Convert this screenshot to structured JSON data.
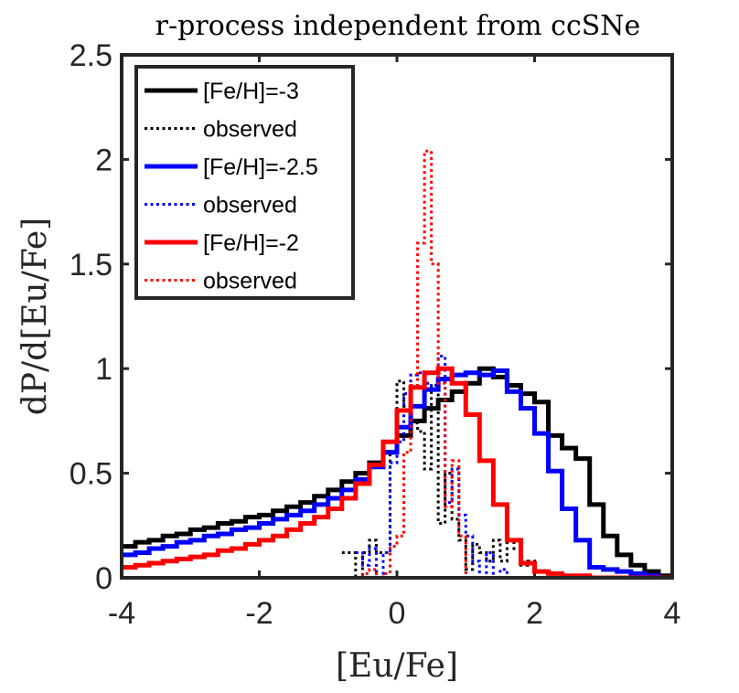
{
  "chart_data": {
    "type": "line",
    "title": "r-process independent from ccSNe",
    "xlabel": "[Eu/Fe]",
    "ylabel": "dP/d[Eu/Fe]",
    "xlim": [
      -4,
      4
    ],
    "ylim": [
      0,
      2.5
    ],
    "xticks": [
      -4,
      -2,
      0,
      2,
      4
    ],
    "yticks": [
      0,
      0.5,
      1,
      1.5,
      2,
      2.5
    ],
    "xtick_labels": [
      "-4",
      "-2",
      "0",
      "2",
      "4"
    ],
    "ytick_labels": [
      "0",
      "0.5",
      "1",
      "1.5",
      "2",
      "2.5"
    ],
    "grid": false,
    "legend_position": "top-left",
    "series": [
      {
        "name": "[Fe/H]=-3",
        "color": "#000000",
        "style": "solid",
        "x": [
          -4.0,
          -3.8,
          -3.6,
          -3.4,
          -3.2,
          -3.0,
          -2.8,
          -2.6,
          -2.4,
          -2.2,
          -2.0,
          -1.8,
          -1.6,
          -1.4,
          -1.2,
          -1.0,
          -0.8,
          -0.6,
          -0.4,
          -0.2,
          0.0,
          0.2,
          0.4,
          0.6,
          0.8,
          1.0,
          1.2,
          1.4,
          1.6,
          1.8,
          2.0,
          2.2,
          2.4,
          2.6,
          2.8,
          3.0,
          3.2,
          3.4,
          3.6,
          3.8
        ],
        "y": [
          0.15,
          0.17,
          0.18,
          0.2,
          0.21,
          0.23,
          0.24,
          0.26,
          0.27,
          0.29,
          0.3,
          0.32,
          0.34,
          0.36,
          0.39,
          0.42,
          0.46,
          0.5,
          0.55,
          0.6,
          0.68,
          0.75,
          0.81,
          0.85,
          0.89,
          0.93,
          1.0,
          0.96,
          0.92,
          0.88,
          0.84,
          0.68,
          0.62,
          0.57,
          0.35,
          0.2,
          0.11,
          0.06,
          0.03,
          0.01
        ]
      },
      {
        "name": "observed",
        "color": "#000000",
        "style": "dotted",
        "x": [
          -0.8,
          -0.7,
          -0.6,
          -0.5,
          -0.4,
          -0.3,
          -0.2,
          -0.1,
          0.0,
          0.1,
          0.2,
          0.3,
          0.4,
          0.5,
          0.6,
          0.7,
          0.8,
          0.9,
          1.0,
          1.1,
          1.2,
          1.3,
          1.4,
          1.5,
          1.6,
          1.7,
          1.8,
          1.9,
          2.0
        ],
        "y": [
          0.12,
          0.12,
          0.0,
          0.12,
          0.18,
          0.12,
          0.12,
          0.6,
          0.94,
          0.82,
          0.74,
          0.7,
          0.52,
          0.92,
          0.26,
          0.5,
          0.28,
          0.18,
          0.04,
          0.16,
          0.12,
          0.08,
          0.18,
          0.08,
          0.18,
          0.14,
          0.06,
          0.08,
          0.0
        ]
      },
      {
        "name": "[Fe/H]=-2.5",
        "color": "#0000ff",
        "style": "solid",
        "x": [
          -4.0,
          -3.8,
          -3.6,
          -3.4,
          -3.2,
          -3.0,
          -2.8,
          -2.6,
          -2.4,
          -2.2,
          -2.0,
          -1.8,
          -1.6,
          -1.4,
          -1.2,
          -1.0,
          -0.8,
          -0.6,
          -0.4,
          -0.2,
          0.0,
          0.2,
          0.4,
          0.6,
          0.8,
          1.0,
          1.2,
          1.4,
          1.6,
          1.8,
          2.0,
          2.2,
          2.4,
          2.6,
          2.8,
          3.0,
          3.2,
          3.4,
          3.6,
          3.8
        ],
        "y": [
          0.11,
          0.12,
          0.14,
          0.15,
          0.17,
          0.18,
          0.2,
          0.21,
          0.23,
          0.24,
          0.26,
          0.28,
          0.3,
          0.32,
          0.35,
          0.38,
          0.42,
          0.47,
          0.53,
          0.6,
          0.72,
          0.82,
          0.9,
          0.95,
          0.97,
          0.98,
          0.97,
          0.99,
          0.89,
          0.81,
          0.69,
          0.51,
          0.33,
          0.18,
          0.05,
          0.04,
          0.03,
          0.02,
          0.01,
          0.0
        ]
      },
      {
        "name": "observed",
        "color": "#0000ff",
        "style": "dotted",
        "x": [
          -0.6,
          -0.5,
          -0.4,
          -0.3,
          -0.2,
          -0.1,
          0.0,
          0.1,
          0.2,
          0.3,
          0.4,
          0.5,
          0.6,
          0.7,
          0.8,
          0.9,
          1.0,
          1.1,
          1.2,
          1.3,
          1.4,
          1.5,
          1.6,
          1.7
        ],
        "y": [
          0.12,
          0.06,
          0.14,
          0.0,
          0.12,
          0.55,
          0.65,
          0.88,
          0.97,
          0.98,
          0.93,
          0.9,
          1.06,
          0.36,
          0.52,
          0.3,
          0.2,
          0.08,
          0.0,
          0.12,
          0.0,
          0.04,
          0.0,
          0.0
        ]
      },
      {
        "name": "[Fe/H]=-2",
        "color": "#ff0000",
        "style": "solid",
        "x": [
          -4.0,
          -3.8,
          -3.6,
          -3.4,
          -3.2,
          -3.0,
          -2.8,
          -2.6,
          -2.4,
          -2.2,
          -2.0,
          -1.8,
          -1.6,
          -1.4,
          -1.2,
          -1.0,
          -0.8,
          -0.6,
          -0.4,
          -0.2,
          0.0,
          0.2,
          0.4,
          0.6,
          0.8,
          1.0,
          1.2,
          1.4,
          1.6,
          1.8,
          2.0,
          2.2,
          2.4,
          2.6,
          2.8,
          3.0,
          3.2,
          3.4,
          3.6,
          3.8
        ],
        "y": [
          0.05,
          0.06,
          0.07,
          0.08,
          0.09,
          0.1,
          0.11,
          0.13,
          0.14,
          0.16,
          0.18,
          0.2,
          0.23,
          0.26,
          0.29,
          0.33,
          0.38,
          0.45,
          0.54,
          0.65,
          0.8,
          0.91,
          0.98,
          1.0,
          0.93,
          0.78,
          0.56,
          0.35,
          0.18,
          0.07,
          0.03,
          0.02,
          0.01,
          0.01,
          0.0,
          0.0,
          0.0,
          0.0,
          0.0,
          0.0
        ]
      },
      {
        "name": "observed",
        "color": "#ff0000",
        "style": "dotted",
        "x": [
          -1.0,
          -0.8,
          -0.6,
          -0.5,
          -0.4,
          -0.3,
          -0.2,
          -0.1,
          0.0,
          0.1,
          0.2,
          0.3,
          0.4,
          0.5,
          0.6,
          0.7,
          0.8,
          0.9,
          1.0,
          1.1,
          1.2
        ],
        "y": [
          0.0,
          0.0,
          0.0,
          0.02,
          0.04,
          0.0,
          0.02,
          0.15,
          0.2,
          0.6,
          0.92,
          1.6,
          2.04,
          1.5,
          0.93,
          0.34,
          0.56,
          0.2,
          0.0,
          0.0,
          0.0
        ]
      }
    ]
  }
}
